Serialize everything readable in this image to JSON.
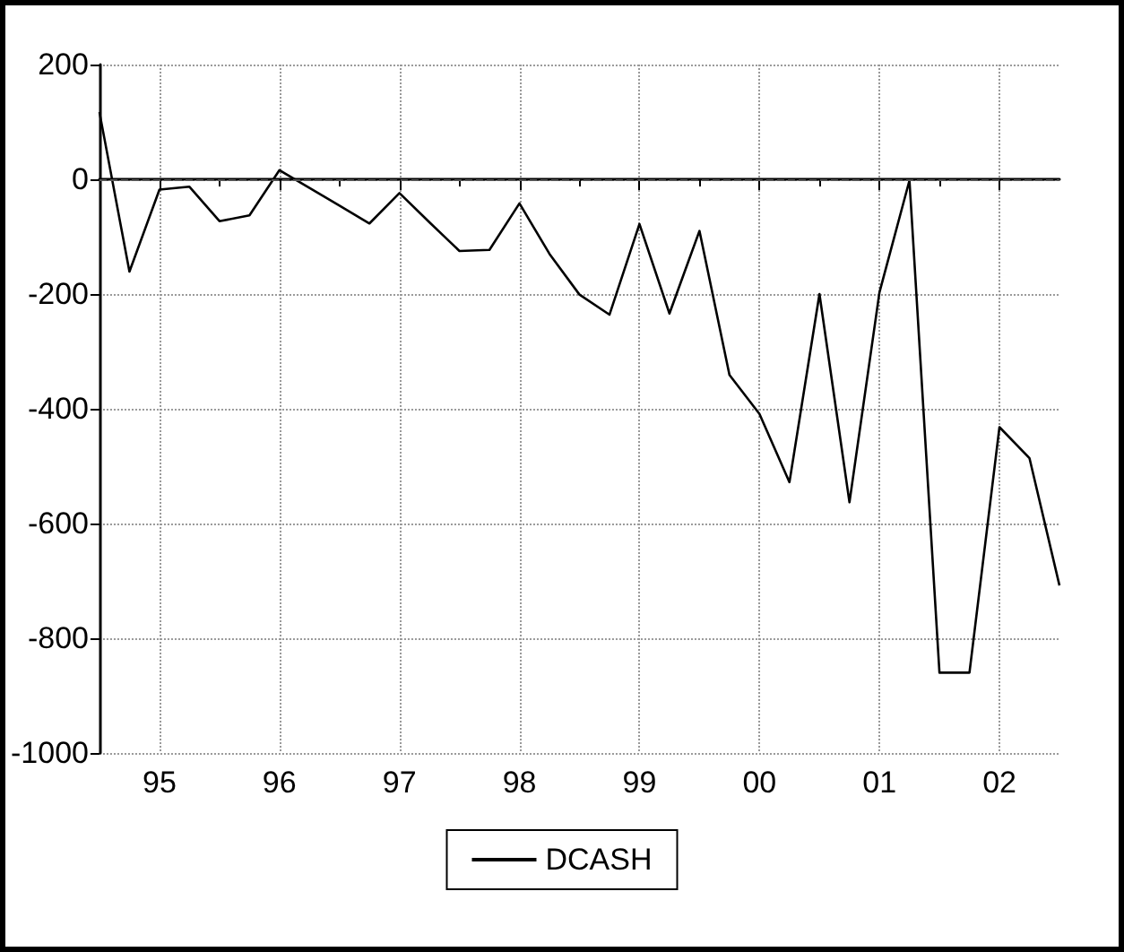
{
  "chart_data": {
    "type": "line",
    "x": [
      1994.5,
      1994.75,
      1995,
      1995.25,
      1995.5,
      1995.75,
      1996,
      1996.25,
      1996.5,
      1996.75,
      1997,
      1997.25,
      1997.5,
      1997.75,
      1998,
      1998.25,
      1998.5,
      1998.75,
      1999,
      1999.25,
      1999.5,
      1999.75,
      2000,
      2000.25,
      2000.5,
      2000.75,
      2001,
      2001.25,
      2001.5,
      2001.75,
      2002,
      2002.25,
      2002.5
    ],
    "series": [
      {
        "name": "DCASH",
        "color": "#000000",
        "values": [
          117,
          -161,
          -18,
          -13,
          -73,
          -63,
          16,
          -15,
          -46,
          -77,
          -24,
          -75,
          -125,
          -123,
          -42,
          -130,
          -201,
          -236,
          -78,
          -234,
          -90,
          -341,
          -409,
          -528,
          -200,
          -563,
          -197,
          -2,
          -860,
          -860,
          -432,
          -486,
          -708
        ]
      }
    ],
    "xlim": [
      1994.5,
      2002.5
    ],
    "xticks": [
      {
        "value": 1995,
        "label": "95"
      },
      {
        "value": 1996,
        "label": "96"
      },
      {
        "value": 1997,
        "label": "97"
      },
      {
        "value": 1998,
        "label": "98"
      },
      {
        "value": 1999,
        "label": "99"
      },
      {
        "value": 2000,
        "label": "00"
      },
      {
        "value": 2001,
        "label": "01"
      },
      {
        "value": 2002,
        "label": "02"
      }
    ],
    "ylim": [
      -1000,
      200
    ],
    "yticks": [
      -1000,
      -800,
      -600,
      -400,
      -200,
      0,
      200
    ],
    "ref_lines": [
      {
        "axis": "y",
        "value": 0,
        "line_style": "dashed",
        "color": "#555555"
      }
    ],
    "grid": true,
    "legend": "bottom",
    "marker": "none",
    "line_style": "solid"
  }
}
